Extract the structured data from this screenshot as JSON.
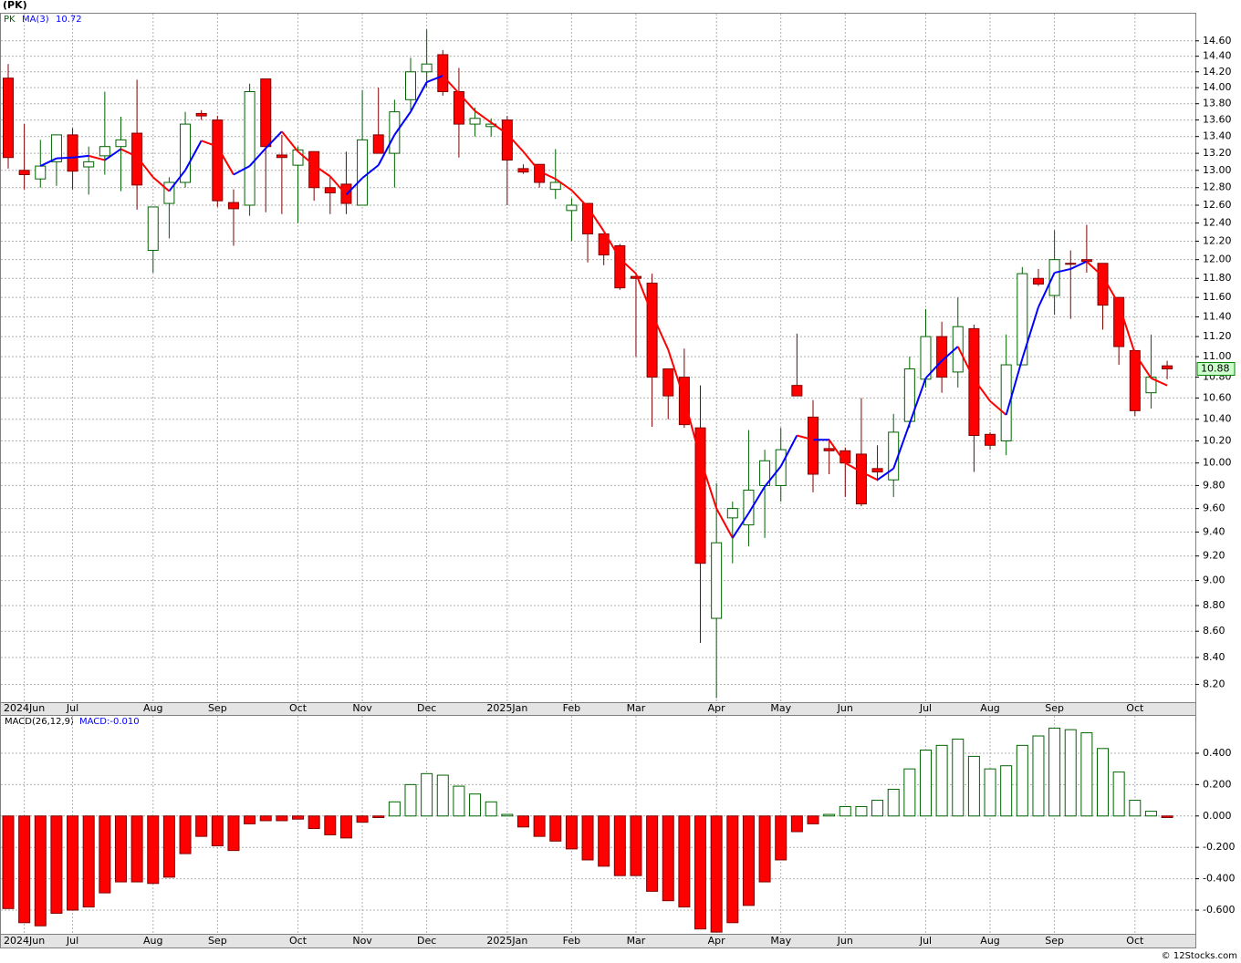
{
  "chart_data": [
    {
      "type": "candlestick",
      "title": "(PK)",
      "symbol": "PK",
      "categories": [
        null,
        "2024Jun",
        null,
        null,
        "Jul",
        null,
        null,
        null,
        null,
        "Aug",
        null,
        null,
        null,
        "Sep",
        null,
        null,
        null,
        null,
        "Oct",
        null,
        null,
        null,
        "Nov",
        null,
        null,
        null,
        "Dec",
        null,
        null,
        null,
        null,
        "2025Jan",
        null,
        null,
        null,
        "Feb",
        null,
        null,
        null,
        "Mar",
        null,
        null,
        null,
        null,
        "Apr",
        null,
        null,
        null,
        "May",
        null,
        null,
        null,
        "Jun",
        null,
        null,
        null,
        null,
        "Jul",
        null,
        null,
        null,
        "Aug",
        null,
        null,
        null,
        "Sep",
        null,
        null,
        null,
        null,
        "Oct",
        null,
        null
      ],
      "open": [
        14.12,
        13.0,
        12.9,
        13.1,
        13.42,
        13.04,
        13.17,
        13.28,
        13.44,
        12.1,
        12.62,
        12.86,
        13.68,
        13.6,
        12.63,
        12.6,
        14.11,
        13.18,
        13.06,
        13.22,
        12.8,
        12.84,
        12.6,
        13.42,
        13.2,
        13.85,
        14.2,
        14.42,
        13.95,
        13.55,
        13.52,
        13.6,
        13.02,
        13.07,
        12.78,
        12.54,
        12.62,
        12.28,
        12.15,
        11.82,
        11.75,
        10.88,
        10.8,
        10.32,
        8.7,
        9.52,
        9.46,
        9.8,
        9.8,
        10.72,
        10.42,
        10.13,
        10.11,
        10.08,
        9.95,
        9.85,
        10.38,
        10.78,
        11.2,
        10.85,
        11.28,
        10.26,
        10.2,
        10.92,
        11.8,
        11.62,
        11.96,
        12.0,
        11.96,
        11.6,
        11.06,
        10.65,
        10.91
      ],
      "high": [
        14.3,
        13.55,
        13.36,
        13.42,
        13.5,
        13.28,
        13.95,
        13.64,
        14.1,
        12.58,
        12.92,
        13.7,
        13.72,
        13.65,
        12.78,
        14.05,
        14.11,
        13.42,
        13.28,
        13.22,
        12.92,
        13.22,
        13.97,
        14.0,
        13.85,
        14.38,
        14.75,
        14.48,
        14.25,
        13.75,
        13.62,
        13.65,
        13.07,
        13.07,
        13.25,
        12.68,
        12.62,
        12.28,
        12.17,
        11.85,
        11.85,
        10.88,
        11.08,
        10.72,
        9.82,
        9.66,
        10.3,
        10.12,
        10.32,
        11.23,
        10.58,
        10.22,
        10.14,
        10.6,
        10.16,
        10.45,
        11.0,
        11.48,
        11.35,
        11.6,
        11.32,
        10.28,
        11.22,
        11.92,
        11.9,
        12.32,
        12.1,
        12.38,
        11.96,
        11.6,
        11.06,
        11.22,
        10.96
      ],
      "low": [
        13.02,
        12.78,
        12.8,
        12.82,
        12.78,
        12.72,
        12.95,
        12.76,
        12.55,
        11.86,
        12.23,
        12.8,
        13.6,
        12.58,
        12.15,
        12.48,
        12.52,
        12.5,
        12.4,
        12.65,
        12.5,
        12.5,
        12.6,
        13.2,
        12.8,
        13.72,
        14.0,
        13.9,
        13.15,
        13.4,
        13.4,
        12.6,
        12.96,
        12.8,
        12.67,
        12.2,
        11.97,
        11.94,
        11.68,
        11.0,
        10.33,
        10.4,
        10.32,
        8.51,
        8.1,
        9.14,
        9.28,
        9.35,
        9.66,
        10.62,
        9.74,
        9.9,
        9.7,
        9.62,
        9.84,
        9.7,
        10.32,
        10.7,
        10.65,
        10.7,
        9.92,
        10.12,
        10.07,
        10.92,
        11.72,
        11.42,
        11.38,
        11.86,
        11.27,
        10.92,
        10.43,
        10.5,
        10.78
      ],
      "close": [
        13.15,
        12.95,
        13.05,
        13.42,
        12.99,
        13.1,
        13.28,
        13.36,
        12.83,
        12.58,
        12.86,
        13.55,
        13.65,
        12.65,
        12.56,
        13.95,
        13.28,
        13.15,
        13.24,
        12.8,
        12.74,
        12.62,
        13.36,
        13.2,
        13.7,
        14.2,
        14.3,
        13.95,
        13.55,
        13.62,
        13.55,
        13.12,
        12.98,
        12.86,
        12.86,
        12.6,
        12.28,
        12.05,
        11.7,
        11.8,
        10.8,
        10.62,
        10.35,
        9.14,
        9.31,
        9.6,
        9.76,
        10.02,
        10.12,
        10.62,
        9.9,
        10.11,
        10.0,
        9.64,
        9.92,
        10.28,
        10.88,
        11.2,
        10.8,
        11.3,
        10.25,
        10.16,
        10.92,
        11.85,
        11.74,
        12.0,
        11.95,
        11.98,
        11.52,
        11.1,
        10.48,
        10.8,
        10.88
      ],
      "up_color": "#ffffff",
      "up_edge": "#006400",
      "down_color": "#ff0000",
      "down_edge": "#800000",
      "ma": {
        "name": "MA(3)",
        "up_color": "#0000ff",
        "down_color": "#ff0000",
        "values": [
          null,
          null,
          13.05,
          13.14,
          13.15,
          13.17,
          13.12,
          13.25,
          13.16,
          12.92,
          12.76,
          13.0,
          13.35,
          13.28,
          12.95,
          13.05,
          13.26,
          13.46,
          13.22,
          13.06,
          12.93,
          12.72,
          12.91,
          13.06,
          13.42,
          13.7,
          14.07,
          14.15,
          13.93,
          13.71,
          13.57,
          13.43,
          13.22,
          12.99,
          12.9,
          12.77,
          12.58,
          12.31,
          12.01,
          11.85,
          11.43,
          11.07,
          10.59,
          10.04,
          9.6,
          9.35,
          9.56,
          9.79,
          9.97,
          10.25,
          10.21,
          10.21,
          10.0,
          9.92,
          9.85,
          9.95,
          10.36,
          10.79,
          10.96,
          11.1,
          10.78,
          10.57,
          10.44,
          10.98,
          11.5,
          11.86,
          11.9,
          11.98,
          11.82,
          11.53,
          11.03,
          10.79,
          10.72
        ]
      },
      "ylim": [
        8.07,
        14.96
      ],
      "log_scale": true,
      "grid": true,
      "yticks": [
        {
          "value": 14.6,
          "label": "14.60"
        },
        {
          "value": 14.4,
          "label": "14.40"
        },
        {
          "value": 14.2,
          "label": "14.20"
        },
        {
          "value": 14,
          "label": "14.00"
        },
        {
          "value": 13.8,
          "label": "13.80"
        },
        {
          "value": 13.6,
          "label": "13.60"
        },
        {
          "value": 13.4,
          "label": "13.40"
        },
        {
          "value": 13.2,
          "label": "13.20"
        },
        {
          "value": 13,
          "label": "13.00"
        },
        {
          "value": 12.8,
          "label": "12.80"
        },
        {
          "value": 12.6,
          "label": "12.60"
        },
        {
          "value": 12.4,
          "label": "12.40"
        },
        {
          "value": 12.2,
          "label": "12.20"
        },
        {
          "value": 12,
          "label": "12.00"
        },
        {
          "value": 11.8,
          "label": "11.80"
        },
        {
          "value": 11.6,
          "label": "11.60"
        },
        {
          "value": 11.4,
          "label": "11.40"
        },
        {
          "value": 11.2,
          "label": "11.20"
        },
        {
          "value": 11,
          "label": "11.00"
        },
        {
          "value": 10.8,
          "label": "10.80"
        },
        {
          "value": 10.6,
          "label": "10.60"
        },
        {
          "value": 10.4,
          "label": "10.40"
        },
        {
          "value": 10.2,
          "label": "10.20"
        },
        {
          "value": 10,
          "label": "10.00"
        },
        {
          "value": 9.8,
          "label": "9.80"
        },
        {
          "value": 9.6,
          "label": "9.60"
        },
        {
          "value": 9.4,
          "label": "9.40"
        },
        {
          "value": 9.2,
          "label": "9.20"
        },
        {
          "value": 9,
          "label": "9.00"
        },
        {
          "value": 8.8,
          "label": "8.80"
        },
        {
          "value": 8.6,
          "label": "8.60"
        },
        {
          "value": 8.4,
          "label": "8.40"
        },
        {
          "value": 8.2,
          "label": "8.20"
        }
      ]
    },
    {
      "type": "bar",
      "name": "MACD(26,12,9)",
      "value_name": "MACD:",
      "value": {
        "value": -0.01,
        "label": "-0.010"
      },
      "categories": [
        null,
        "2024Jun",
        null,
        null,
        "Jul",
        null,
        null,
        null,
        null,
        "Aug",
        null,
        null,
        null,
        "Sep",
        null,
        null,
        null,
        null,
        "Oct",
        null,
        null,
        null,
        "Nov",
        null,
        null,
        null,
        "Dec",
        null,
        null,
        null,
        null,
        "2025Jan",
        null,
        null,
        null,
        "Feb",
        null,
        null,
        null,
        "Mar",
        null,
        null,
        null,
        null,
        "Apr",
        null,
        null,
        null,
        "May",
        null,
        null,
        null,
        "Jun",
        null,
        null,
        null,
        null,
        "Jul",
        null,
        null,
        null,
        "Aug",
        null,
        null,
        null,
        "Sep",
        null,
        null,
        null,
        null,
        "Oct",
        null,
        null
      ],
      "values": [
        -0.59,
        -0.68,
        -0.7,
        -0.62,
        -0.6,
        -0.58,
        -0.49,
        -0.42,
        -0.42,
        -0.43,
        -0.39,
        -0.24,
        -0.13,
        -0.19,
        -0.22,
        -0.05,
        -0.03,
        -0.03,
        -0.02,
        -0.08,
        -0.12,
        -0.14,
        -0.04,
        -0.01,
        0.09,
        0.2,
        0.27,
        0.26,
        0.19,
        0.14,
        0.09,
        0.01,
        -0.07,
        -0.13,
        -0.16,
        -0.21,
        -0.28,
        -0.32,
        -0.38,
        -0.38,
        -0.48,
        -0.54,
        -0.58,
        -0.72,
        -0.74,
        -0.68,
        -0.57,
        -0.42,
        -0.28,
        -0.1,
        -0.05,
        0.01,
        0.06,
        0.06,
        0.1,
        0.17,
        0.3,
        0.42,
        0.45,
        0.49,
        0.38,
        0.3,
        0.32,
        0.45,
        0.51,
        0.56,
        0.55,
        0.53,
        0.43,
        0.28,
        0.1,
        0.03,
        -0.01
      ],
      "positive_color": "#ffffff",
      "positive_edge": "#006400",
      "negative_color": "#ff0000",
      "negative_edge": "#800000",
      "ylim": [
        -0.751,
        0.638
      ],
      "grid": true,
      "yticks": [
        {
          "value": 0.4,
          "label": "0.400"
        },
        {
          "value": 0.2,
          "label": "0.200"
        },
        {
          "value": 0,
          "label": "0.000"
        },
        {
          "value": -0.2,
          "label": "-0.200"
        },
        {
          "value": -0.4,
          "label": "-0.400"
        },
        {
          "value": -0.6,
          "label": "-0.600"
        }
      ]
    }
  ],
  "footer": "© 12Stocks.com"
}
